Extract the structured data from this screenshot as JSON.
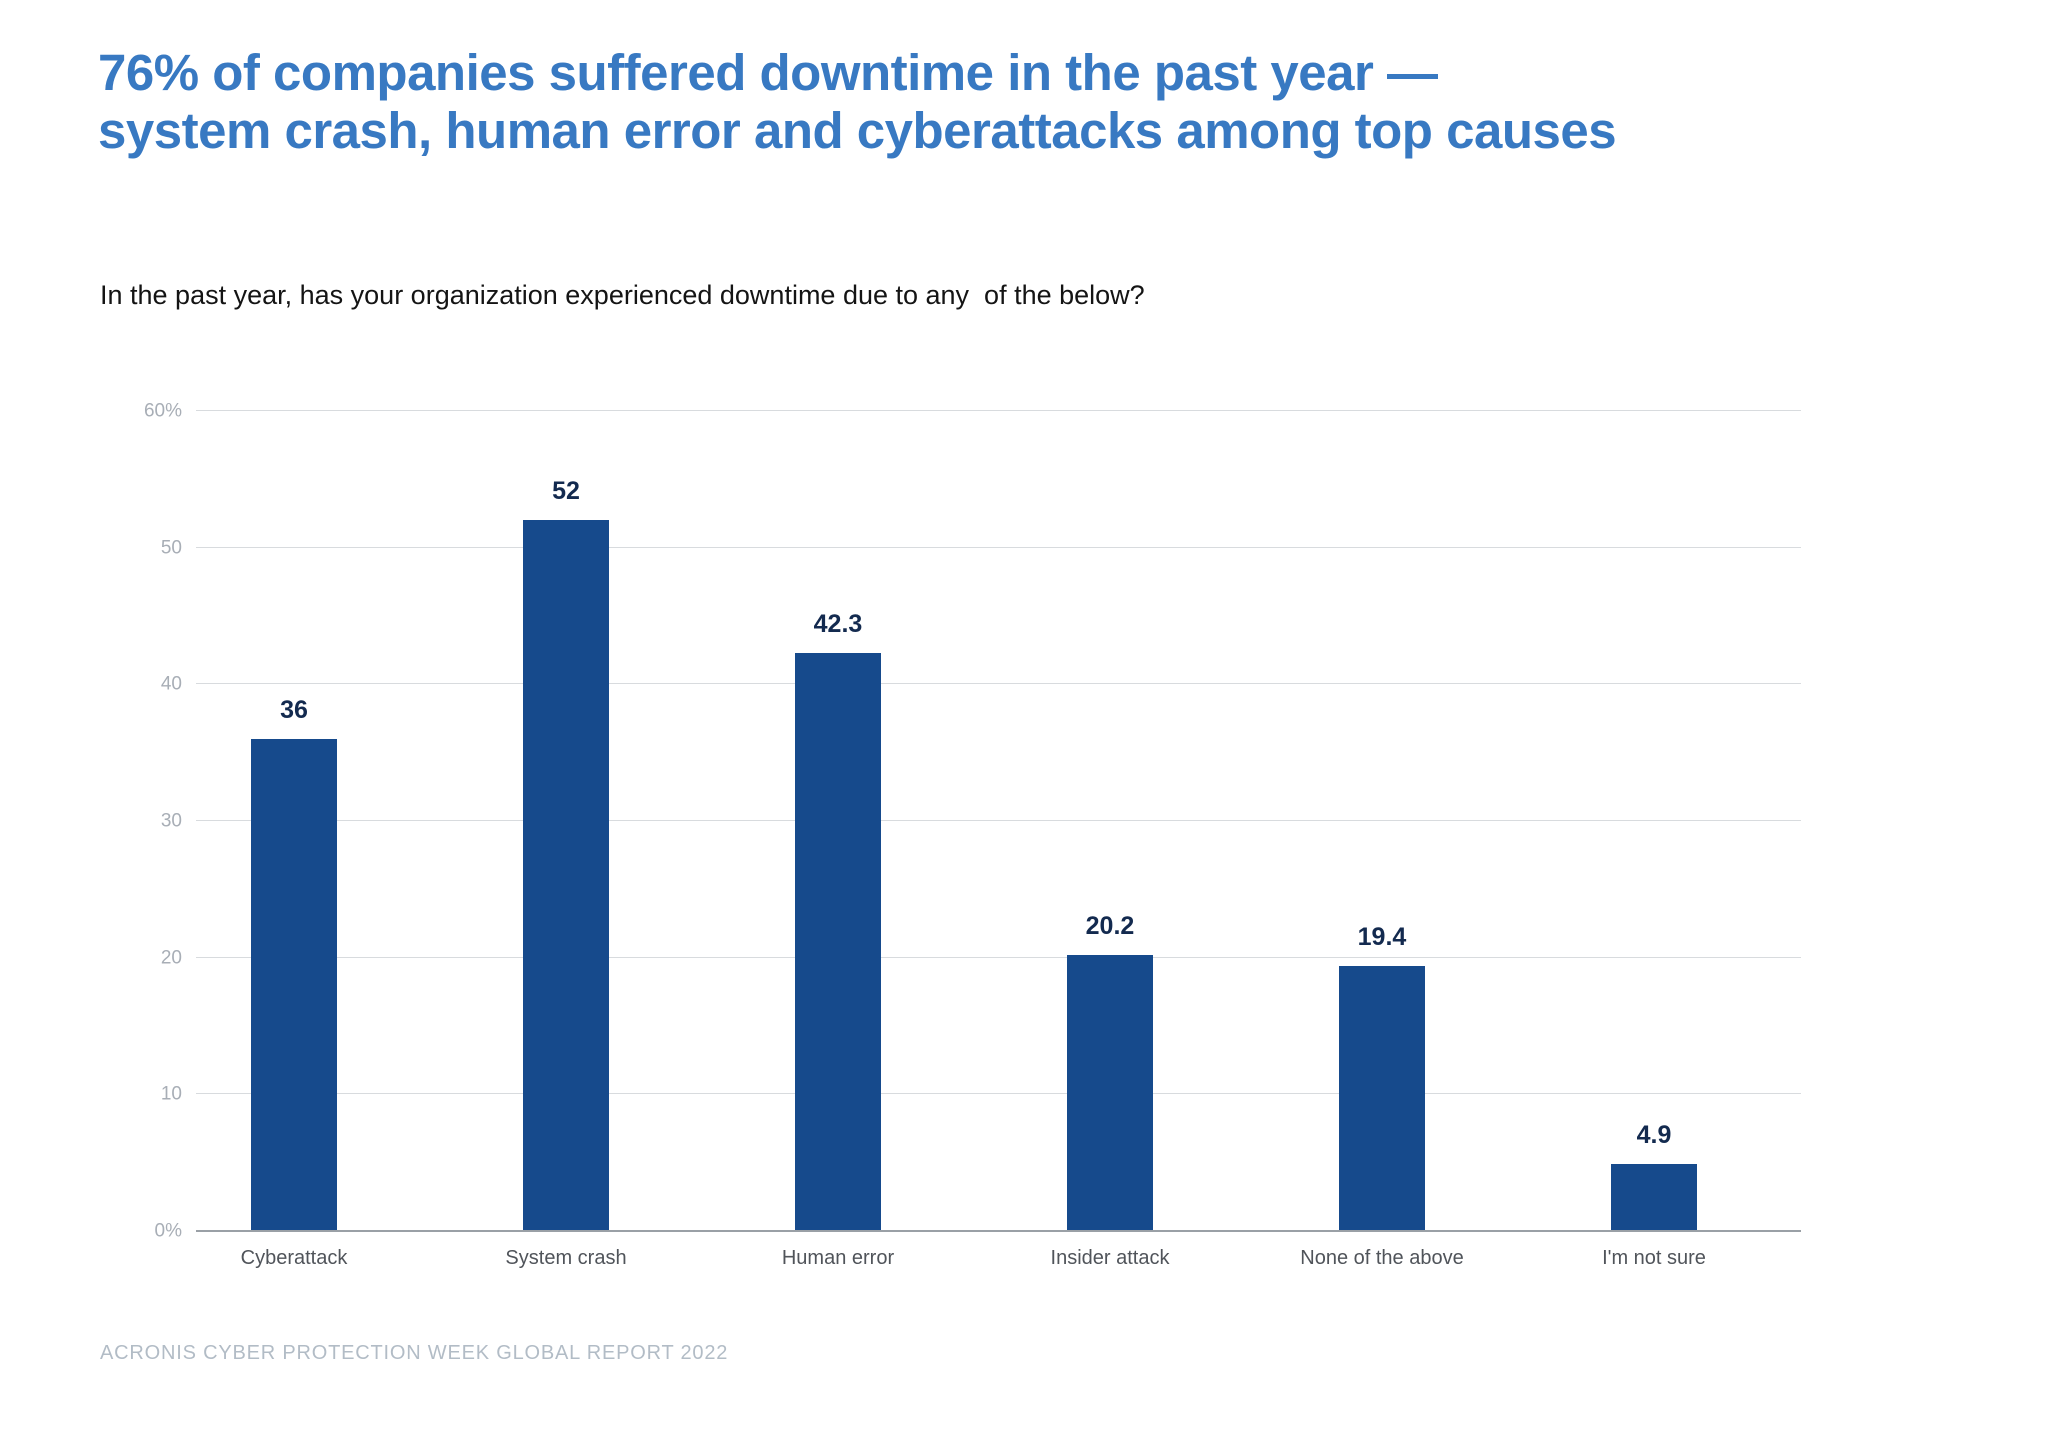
{
  "title": {
    "line1": "76% of companies suffered downtime in the past year —",
    "line2": "system crash, human error and cyberattacks among top causes"
  },
  "subtitle": "In the past year, has your organization experienced downtime due to any  of the below?",
  "footer": {
    "source": "ACRONIS CYBER PROTECTION WEEK GLOBAL REPORT 2022"
  },
  "colors": {
    "title_blue": "#3879C2",
    "bar_blue": "#164A8C",
    "value_label_navy": "#132A4F",
    "gridline_gray": "#D8DBDE",
    "axis_gray": "#9AA0A6",
    "tick_label_gray": "#A8AEB6",
    "category_label_gray": "#50545A",
    "footer_gray": "#B2BCC6"
  },
  "chart_data": {
    "type": "bar",
    "title": "76% of companies suffered downtime in the past year — system crash, human error and cyberattacks among top causes",
    "subtitle": "In the past year, has your organization experienced downtime due to any of the below?",
    "categories": [
      "Cyberattack",
      "System crash",
      "Human error",
      "Insider attack",
      "None of the above",
      "I'm not sure"
    ],
    "values": [
      36,
      52,
      42.3,
      20.2,
      19.4,
      4.9
    ],
    "value_labels": [
      "36",
      "52",
      "42.3",
      "20.2",
      "19.4",
      "4.9"
    ],
    "xlabel": "",
    "ylabel": "",
    "ylim": [
      0,
      60
    ],
    "yticks": [
      {
        "value": 0,
        "label": "0%"
      },
      {
        "value": 10,
        "label": "10"
      },
      {
        "value": 20,
        "label": "20"
      },
      {
        "value": 30,
        "label": "30"
      },
      {
        "value": 40,
        "label": "40"
      },
      {
        "value": 50,
        "label": "50"
      },
      {
        "value": 60,
        "label": "60%"
      }
    ],
    "grid": "horizontal",
    "legend_position": "none",
    "bar_color": "#164A8C",
    "source": "ACRONIS CYBER PROTECTION WEEK GLOBAL REPORT 2022"
  }
}
